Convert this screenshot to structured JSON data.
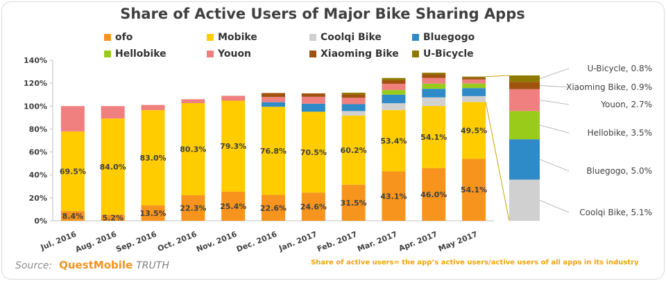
{
  "chart_data": {
    "type": "bar",
    "stacked": true,
    "title": "Share of Active Users of Major Bike Sharing Apps",
    "xlabel": "",
    "ylabel": "",
    "ylim": [
      0,
      140
    ],
    "yticks": [
      "0%",
      "20%",
      "40%",
      "60%",
      "80%",
      "100%",
      "120%",
      "140%"
    ],
    "yticks_values": [
      0,
      20,
      40,
      60,
      80,
      100,
      120,
      140
    ],
    "gridlines": false,
    "legend_position": "top",
    "categories": [
      "Jul. 2016",
      "Aug. 2016",
      "Sep. 2016",
      "Oct. 2016",
      "Nov. 2016",
      "Dec. 2016",
      "Jan. 2017",
      "Feb. 2017",
      "Mar. 2017",
      "Apr. 2017",
      "May 2017"
    ],
    "series": [
      {
        "name": "ofo",
        "color": "#f7941d",
        "values": [
          8.4,
          5.2,
          13.5,
          22.3,
          25.4,
          22.6,
          24.6,
          31.5,
          43.1,
          46.0,
          54.1
        ]
      },
      {
        "name": "Mobike",
        "color": "#ffcc00",
        "values": [
          69.5,
          84.0,
          83.0,
          80.3,
          79.3,
          76.8,
          70.5,
          60.2,
          53.4,
          54.1,
          49.5
        ]
      },
      {
        "name": "Coolqi Bike",
        "color": "#d0d0d0",
        "values": [
          0,
          0,
          0,
          0,
          0,
          0,
          0,
          4.0,
          6.0,
          7.5,
          5.1
        ]
      },
      {
        "name": "Bluegogo",
        "color": "#2e8bc8",
        "values": [
          0,
          0,
          0,
          0,
          0,
          4.0,
          7.0,
          6.0,
          7.5,
          7.5,
          7.0
        ]
      },
      {
        "name": "Hellobike",
        "color": "#99cc1a",
        "values": [
          0,
          0,
          0,
          0,
          0,
          0,
          0,
          0,
          4.0,
          4.5,
          4.0
        ]
      },
      {
        "name": "Youon",
        "color": "#f08080",
        "values": [
          22.1,
          10.8,
          4.5,
          3.4,
          4.3,
          4.5,
          6.0,
          5.5,
          5.5,
          5.0,
          3.5
        ]
      },
      {
        "name": "Xiaoming Bike",
        "color": "#a0520f",
        "values": [
          0,
          0,
          0,
          0,
          0,
          3.5,
          3.0,
          3.0,
          3.0,
          3.0,
          1.5
        ]
      },
      {
        "name": "U-Bicycle",
        "color": "#8f7a00",
        "values": [
          0,
          0,
          0,
          0,
          0,
          0,
          0,
          1.5,
          2.0,
          1.5,
          1.0
        ]
      }
    ],
    "bar_labels": {
      "ofo": [
        "8.4%",
        "5.2%",
        "13.5%",
        "22.3%",
        "25.4%",
        "22.6%",
        "24.6%",
        "31.5%",
        "43.1%",
        "46.0%",
        "54.1%"
      ],
      "Mobike": [
        "69.5%",
        "84.0%",
        "83.0%",
        "80.3%",
        "79.3%",
        "76.8%",
        "70.5%",
        "60.2%",
        "53.4%",
        "54.1%",
        "49.5%"
      ]
    },
    "breakdown": {
      "items": [
        {
          "name": "Coolqi Bike",
          "value": 5.1,
          "label": "Coolqi Bike, 5.1%",
          "color": "#d0d0d0"
        },
        {
          "name": "Bluegogo",
          "value": 5.0,
          "label": "Bluegogo, 5.0%",
          "color": "#2e8bc8"
        },
        {
          "name": "Hellobike",
          "value": 3.5,
          "label": "Hellobike, 3.5%",
          "color": "#99cc1a"
        },
        {
          "name": "Youon",
          "value": 2.7,
          "label": "Youon, 2.7%",
          "color": "#f08080"
        },
        {
          "name": "Xiaoming Bike",
          "value": 0.9,
          "label": "Xiaoming Bike, 0.9%",
          "color": "#a0520f"
        },
        {
          "name": "U-Bicycle",
          "value": 0.8,
          "label": "U-Bicycle, 0.8%",
          "color": "#8f7a00"
        }
      ]
    }
  },
  "footer": {
    "source_label": "Source:",
    "source_brand": "QuestMobile",
    "source_suffix": "TRUTH",
    "note": "Share of active users= the app’s active users/active users of all apps in its industry"
  }
}
